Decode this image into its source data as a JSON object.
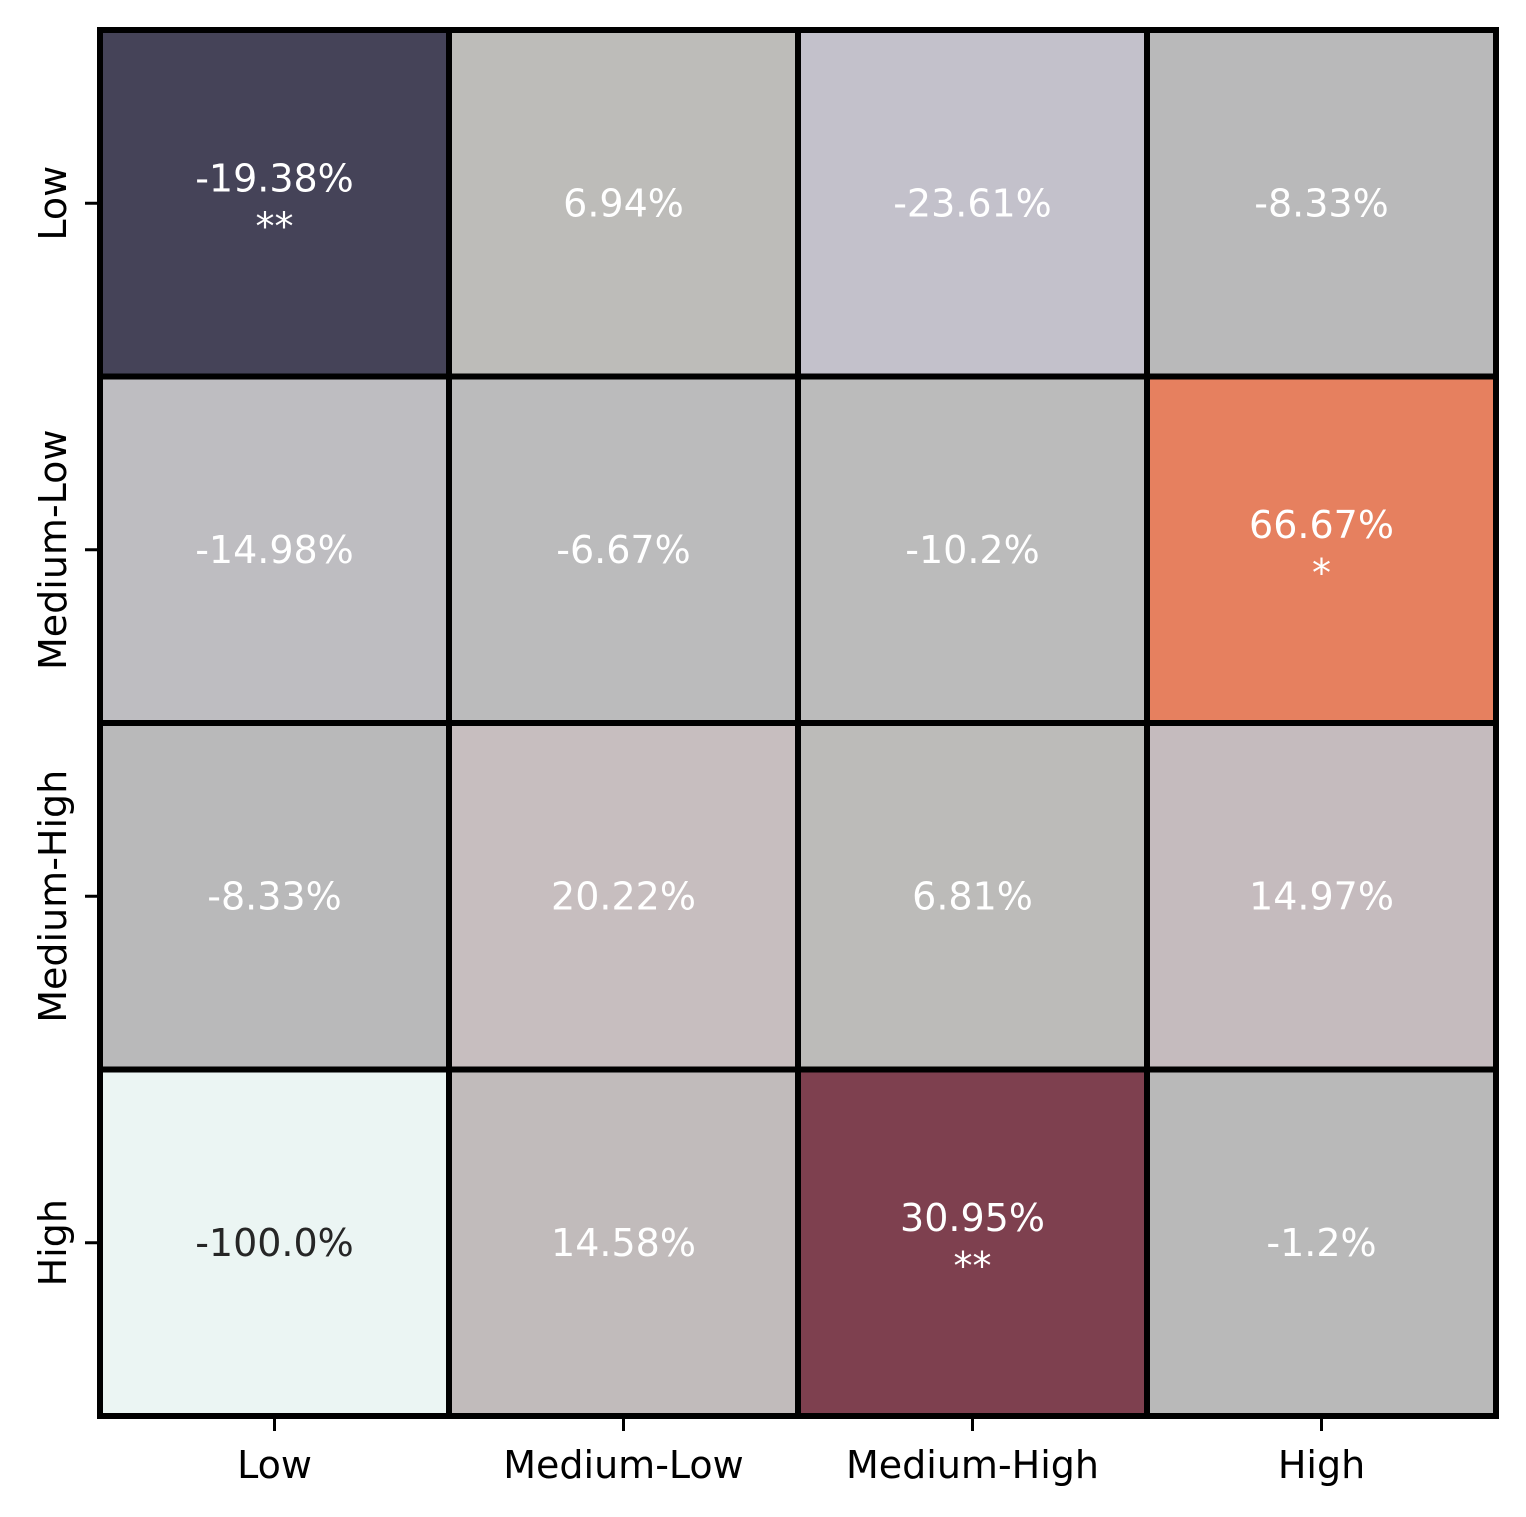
{
  "chart_data": {
    "type": "heatmap",
    "title": "",
    "xlabel": "",
    "ylabel": "",
    "x_categories": [
      "Low",
      "Medium-Low",
      "Medium-High",
      "High"
    ],
    "y_categories": [
      "Low",
      "Medium-Low",
      "Medium-High",
      "High"
    ],
    "values": [
      [
        -19.38,
        6.94,
        -23.61,
        -8.33
      ],
      [
        -14.98,
        -6.67,
        -10.2,
        66.67
      ],
      [
        -8.33,
        20.22,
        6.81,
        14.97
      ],
      [
        -100.0,
        14.58,
        30.95,
        -1.2
      ]
    ],
    "labels": [
      [
        "-19.38%",
        "6.94%",
        "-23.61%",
        "-8.33%"
      ],
      [
        "-14.98%",
        "-6.67%",
        "-10.2%",
        "66.67%"
      ],
      [
        "-8.33%",
        "20.22%",
        "6.81%",
        "14.97%"
      ],
      [
        "-100.0%",
        "14.58%",
        "30.95%",
        "-1.2%"
      ]
    ],
    "significance": [
      [
        "**",
        "",
        "",
        ""
      ],
      [
        "",
        "",
        "",
        "*"
      ],
      [
        "",
        "",
        "",
        ""
      ],
      [
        "",
        "",
        "**",
        ""
      ]
    ],
    "cell_colors": [
      [
        "#454358",
        "#bdbcb9",
        "#c3c1cb",
        "#b9b9ba"
      ],
      [
        "#bebdc1",
        "#bbbbbc",
        "#bbbbbb",
        "#e6805f"
      ],
      [
        "#b9b9ba",
        "#c7bebf",
        "#bcbbb9",
        "#c5bbbe"
      ],
      [
        "#ebf5f3",
        "#c1bbbb",
        "#7e404f",
        "#b9b9b9"
      ]
    ],
    "text_colors": [
      [
        "#ffffff",
        "#ffffff",
        "#ffffff",
        "#ffffff"
      ],
      [
        "#ffffff",
        "#ffffff",
        "#ffffff",
        "#ffffff"
      ],
      [
        "#ffffff",
        "#ffffff",
        "#ffffff",
        "#ffffff"
      ],
      [
        "#262626",
        "#ffffff",
        "#ffffff",
        "#ffffff"
      ]
    ],
    "grid_line_color": "#000000",
    "colorbar": false,
    "legend": "none"
  }
}
